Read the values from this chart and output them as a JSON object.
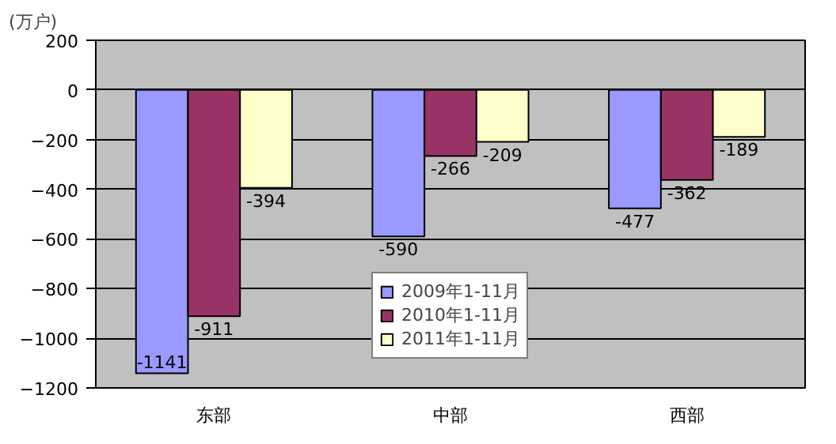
{
  "chart_data": {
    "type": "bar",
    "ylabel": "(万户)",
    "categories": [
      "东部",
      "中部",
      "西部"
    ],
    "series": [
      {
        "name": "2009年1-11月",
        "color": "#9999ff",
        "values": [
          -1141,
          -590,
          -477
        ]
      },
      {
        "name": "2010年1-11月",
        "color": "#993366",
        "values": [
          -911,
          -266,
          -362
        ]
      },
      {
        "name": "2011年1-11月",
        "color": "#ffffcc",
        "values": [
          -394,
          -209,
          -189
        ]
      }
    ],
    "ylim": [
      -1200,
      200
    ],
    "yticks": [
      -1200,
      -1000,
      -800,
      -600,
      -400,
      -200,
      0,
      200
    ],
    "grid": "y",
    "legend": "bottom",
    "data_labels": true
  }
}
